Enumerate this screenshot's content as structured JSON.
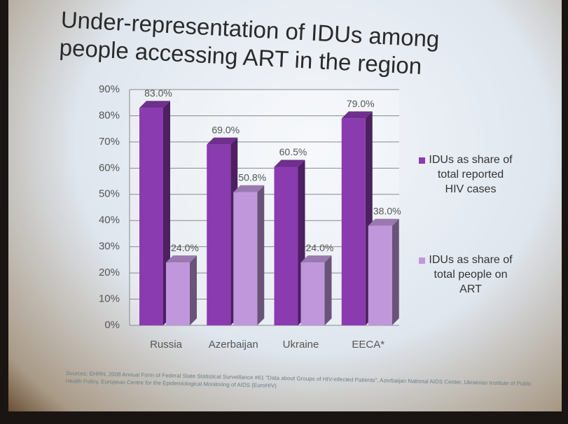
{
  "chart_data": {
    "type": "bar",
    "title": "Under-representation of IDUs among people accessing ART in the region",
    "categories": [
      "Russia",
      "Azerbaijan",
      "Ukraine",
      "EECA*"
    ],
    "series": [
      {
        "name": "IDUs as share of total reported HIV cases",
        "color": "#8a3bb0",
        "values": [
          83.0,
          69.0,
          60.5,
          79.0
        ],
        "value_labels": [
          "83.0%",
          "69.0%",
          "60.5%",
          "79.0%"
        ]
      },
      {
        "name": "IDUs as share of total people on ART",
        "color": "#c197dc",
        "values": [
          24.0,
          50.8,
          24.0,
          38.0
        ],
        "value_labels": [
          "24.0%",
          "50.8%",
          "24.0%",
          "38.0%"
        ]
      }
    ],
    "ylim": [
      0,
      90
    ],
    "yticks": [
      {
        "value": 0,
        "label": "0%"
      },
      {
        "value": 10,
        "label": "10%"
      },
      {
        "value": 20,
        "label": "20%"
      },
      {
        "value": 30,
        "label": "30%"
      },
      {
        "value": 40,
        "label": "40%"
      },
      {
        "value": 50,
        "label": "50%"
      },
      {
        "value": 60,
        "label": "60%"
      },
      {
        "value": 70,
        "label": "70%"
      },
      {
        "value": 80,
        "label": "80%"
      },
      {
        "value": 90,
        "label": "90%"
      }
    ],
    "grid": true,
    "legend": "right",
    "source": "Sources: EHRN, 2008 Annual Form of Federal State Statistical Surveillance #61 \"Data about Groups of HIV-infected Patients\", Azerbaijan National AIDS Center, Ukrainian Institute of Public Health Policy, European Centre for the Epidemiological Monitoring of AIDS (EuroHIV)"
  }
}
